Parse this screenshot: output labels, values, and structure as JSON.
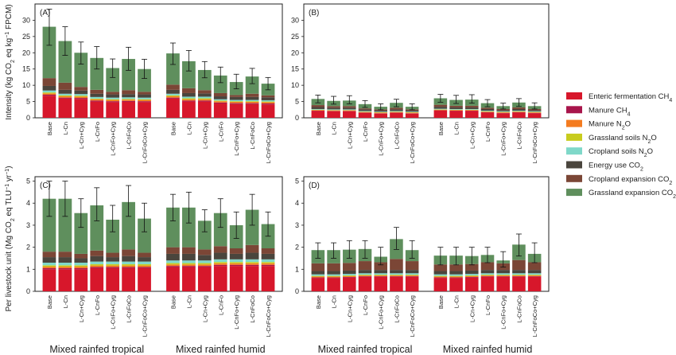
{
  "legend": [
    {
      "key": "enteric",
      "label": "Enteric fermentation CH",
      "sub": "4",
      "color": "#d7172b"
    },
    {
      "key": "manure_ch4",
      "label": "Manure CH",
      "sub": "4",
      "color": "#a8154b"
    },
    {
      "key": "manure_n2o",
      "label": "Manure N",
      "sub": "2",
      "tail": "O",
      "color": "#f47c20"
    },
    {
      "key": "grass_soil",
      "label": "Grassland soils N",
      "sub": "2",
      "tail": "O",
      "color": "#c8cc1e"
    },
    {
      "key": "crop_soil",
      "label": "Cropland soils N",
      "sub": "2",
      "tail": "O",
      "color": "#7fd8c9"
    },
    {
      "key": "energy",
      "label": "Energy use CO",
      "sub": "2",
      "color": "#4a453d"
    },
    {
      "key": "crop_exp",
      "label": "Cropland expansion CO",
      "sub": "2",
      "color": "#7b4636"
    },
    {
      "key": "grass_exp",
      "label": "Grassland expansion CO",
      "sub": "2",
      "color": "#5f8f5d"
    }
  ],
  "y_labels": {
    "top": "Intensity (kg CO2 eq kg⁻¹ FPCM)",
    "bottom": "Per livestock unit (Mg CO2 eq TLU⁻¹ yr⁻¹)"
  },
  "chart_data": [
    {
      "panel": "(A)",
      "type": "bar",
      "stacked": true,
      "ylim": [
        0,
        35
      ],
      "yticks": [
        0,
        5,
        10,
        15,
        20,
        25,
        30
      ],
      "groups": [
        "Mixed rainfed tropical",
        "Mixed rainfed humid"
      ],
      "categories": [
        "Base",
        "L-Cn",
        "L-Cn+Cyg",
        "L-CnFo",
        "L-CnFo+Cyg",
        "L-CnFoCo",
        "L-CnFoCo+Cyg"
      ],
      "bars": [
        {
          "group": 0,
          "cat": 0,
          "stack": [
            6.8,
            0.3,
            0.4,
            0.3,
            0.6,
            1.4,
            2.4,
            15.8
          ],
          "err": [
            22.3,
            33.4
          ]
        },
        {
          "group": 0,
          "cat": 1,
          "stack": [
            5.9,
            0.3,
            0.4,
            0.3,
            0.5,
            1.2,
            2.2,
            12.8
          ],
          "err": [
            19.2,
            28.0
          ]
        },
        {
          "group": 0,
          "cat": 2,
          "stack": [
            5.8,
            0.3,
            0.4,
            0.3,
            0.5,
            1.1,
            1.1,
            10.5
          ],
          "err": [
            16.5,
            23.3
          ]
        },
        {
          "group": 0,
          "cat": 3,
          "stack": [
            5.0,
            0.3,
            0.4,
            0.2,
            0.5,
            1.0,
            1.2,
            9.8
          ],
          "err": [
            15.0,
            21.9
          ]
        },
        {
          "group": 0,
          "cat": 4,
          "stack": [
            4.8,
            0.3,
            0.4,
            0.2,
            0.5,
            1.0,
            0.8,
            7.3
          ],
          "err": [
            12.4,
            18.1
          ]
        },
        {
          "group": 0,
          "cat": 5,
          "stack": [
            4.9,
            0.3,
            0.4,
            0.2,
            0.5,
            1.0,
            1.2,
            9.6
          ],
          "err": [
            14.6,
            21.7
          ]
        },
        {
          "group": 0,
          "cat": 6,
          "stack": [
            4.8,
            0.3,
            0.4,
            0.2,
            0.5,
            1.0,
            0.8,
            7.0
          ],
          "err": [
            12.1,
            18.0
          ]
        },
        {
          "group": 1,
          "cat": 0,
          "stack": [
            5.9,
            0.3,
            0.4,
            0.3,
            0.5,
            1.2,
            1.6,
            9.6
          ],
          "err": [
            16.4,
            23.0
          ]
        },
        {
          "group": 1,
          "cat": 1,
          "stack": [
            5.0,
            0.3,
            0.4,
            0.3,
            0.5,
            1.1,
            1.5,
            8.3
          ],
          "err": [
            14.4,
            20.7
          ]
        },
        {
          "group": 1,
          "cat": 2,
          "stack": [
            5.0,
            0.3,
            0.4,
            0.3,
            0.5,
            1.0,
            1.0,
            6.2
          ],
          "err": [
            12.3,
            17.3
          ]
        },
        {
          "group": 1,
          "cat": 3,
          "stack": [
            4.4,
            0.3,
            0.4,
            0.2,
            0.4,
            0.9,
            1.0,
            5.4
          ],
          "err": [
            10.8,
            15.6
          ]
        },
        {
          "group": 1,
          "cat": 4,
          "stack": [
            4.2,
            0.3,
            0.4,
            0.2,
            0.4,
            0.9,
            0.6,
            4.0
          ],
          "err": [
            8.9,
            13.4
          ]
        },
        {
          "group": 1,
          "cat": 5,
          "stack": [
            4.2,
            0.3,
            0.4,
            0.2,
            0.4,
            0.9,
            1.0,
            5.3
          ],
          "err": [
            10.5,
            15.2
          ]
        },
        {
          "group": 1,
          "cat": 6,
          "stack": [
            4.1,
            0.3,
            0.4,
            0.2,
            0.4,
            0.9,
            0.6,
            3.6
          ],
          "err": [
            8.6,
            12.4
          ]
        }
      ]
    },
    {
      "panel": "(B)",
      "type": "bar",
      "stacked": true,
      "ylim": [
        0,
        35
      ],
      "yticks": [
        0,
        5,
        10,
        15,
        20,
        25,
        30
      ],
      "groups": [
        "Mixed rainfed tropical",
        "Mixed rainfed humid"
      ],
      "categories": [
        "Base",
        "L-Cn",
        "L-Cn+Cyg",
        "L-CnFo",
        "L-CnFo+Cyg",
        "L-CnFoCo",
        "L-CnFoCo+Cyg"
      ],
      "bars": [
        {
          "group": 0,
          "cat": 0,
          "stack": [
            2.1,
            0.1,
            0.2,
            0.1,
            0.2,
            0.6,
            0.6,
            1.9
          ],
          "err": [
            4.6,
            7.0
          ]
        },
        {
          "group": 0,
          "cat": 1,
          "stack": [
            2.0,
            0.1,
            0.2,
            0.1,
            0.2,
            0.5,
            0.5,
            1.6
          ],
          "err": [
            4.2,
            6.6
          ]
        },
        {
          "group": 0,
          "cat": 2,
          "stack": [
            2.0,
            0.1,
            0.2,
            0.1,
            0.2,
            0.5,
            0.5,
            1.7
          ],
          "err": [
            4.3,
            6.8
          ]
        },
        {
          "group": 0,
          "cat": 3,
          "stack": [
            1.5,
            0.1,
            0.2,
            0.1,
            0.2,
            0.5,
            0.3,
            1.3
          ],
          "err": [
            3.2,
            5.3
          ]
        },
        {
          "group": 0,
          "cat": 4,
          "stack": [
            1.3,
            0.1,
            0.2,
            0.1,
            0.2,
            0.4,
            0.3,
            0.8
          ],
          "err": [
            2.5,
            4.3
          ]
        },
        {
          "group": 0,
          "cat": 5,
          "stack": [
            1.5,
            0.1,
            0.2,
            0.1,
            0.2,
            0.5,
            0.5,
            1.5
          ],
          "err": [
            3.4,
            5.7
          ]
        },
        {
          "group": 0,
          "cat": 6,
          "stack": [
            1.3,
            0.1,
            0.2,
            0.1,
            0.2,
            0.4,
            0.3,
            0.8
          ],
          "err": [
            2.5,
            4.3
          ]
        },
        {
          "group": 1,
          "cat": 0,
          "stack": [
            2.2,
            0.1,
            0.2,
            0.1,
            0.2,
            0.6,
            0.6,
            2.0
          ],
          "err": [
            4.8,
            7.2
          ]
        },
        {
          "group": 1,
          "cat": 1,
          "stack": [
            2.1,
            0.1,
            0.2,
            0.1,
            0.2,
            0.5,
            0.5,
            1.8
          ],
          "err": [
            4.4,
            6.9
          ]
        },
        {
          "group": 1,
          "cat": 2,
          "stack": [
            2.1,
            0.1,
            0.2,
            0.1,
            0.2,
            0.5,
            0.5,
            1.9
          ],
          "err": [
            4.5,
            7.1
          ]
        },
        {
          "group": 1,
          "cat": 3,
          "stack": [
            1.6,
            0.1,
            0.2,
            0.1,
            0.2,
            0.5,
            0.4,
            1.4
          ],
          "err": [
            3.4,
            5.6
          ]
        },
        {
          "group": 1,
          "cat": 4,
          "stack": [
            1.4,
            0.1,
            0.2,
            0.1,
            0.2,
            0.4,
            0.3,
            0.9
          ],
          "err": [
            2.7,
            4.5
          ]
        },
        {
          "group": 1,
          "cat": 5,
          "stack": [
            1.6,
            0.1,
            0.2,
            0.1,
            0.2,
            0.5,
            0.5,
            1.5
          ],
          "err": [
            3.5,
            5.9
          ]
        },
        {
          "group": 1,
          "cat": 6,
          "stack": [
            1.4,
            0.1,
            0.2,
            0.1,
            0.2,
            0.4,
            0.3,
            0.9
          ],
          "err": [
            2.7,
            4.6
          ]
        }
      ]
    },
    {
      "panel": "(C)",
      "type": "bar",
      "stacked": true,
      "ylim": [
        0,
        5.2
      ],
      "yticks": [
        0,
        1,
        2,
        3,
        4,
        5
      ],
      "groups": [
        "Mixed rainfed tropical",
        "Mixed rainfed humid"
      ],
      "categories": [
        "Base",
        "L-Cn",
        "L-Cn+Cyg",
        "L-CnFo",
        "L-CnFo+Cyg",
        "L-CnFoCo",
        "L-CnFoCo+Cyg"
      ],
      "bars": [
        {
          "group": 0,
          "cat": 0,
          "stack": [
            1.0,
            0.05,
            0.07,
            0.06,
            0.12,
            0.25,
            0.25,
            2.4
          ],
          "err": [
            3.4,
            5.0
          ]
        },
        {
          "group": 0,
          "cat": 1,
          "stack": [
            1.0,
            0.05,
            0.07,
            0.06,
            0.12,
            0.25,
            0.25,
            2.4
          ],
          "err": [
            3.4,
            5.0
          ]
        },
        {
          "group": 0,
          "cat": 2,
          "stack": [
            1.0,
            0.05,
            0.07,
            0.06,
            0.12,
            0.2,
            0.2,
            1.85
          ],
          "err": [
            2.9,
            4.2
          ]
        },
        {
          "group": 0,
          "cat": 3,
          "stack": [
            1.05,
            0.05,
            0.07,
            0.06,
            0.12,
            0.25,
            0.25,
            2.05
          ],
          "err": [
            3.2,
            4.7
          ]
        },
        {
          "group": 0,
          "cat": 4,
          "stack": [
            1.05,
            0.05,
            0.07,
            0.06,
            0.12,
            0.2,
            0.2,
            1.5
          ],
          "err": [
            2.7,
            3.9
          ]
        },
        {
          "group": 0,
          "cat": 5,
          "stack": [
            1.05,
            0.05,
            0.07,
            0.06,
            0.12,
            0.25,
            0.3,
            2.15
          ],
          "err": [
            3.4,
            4.8
          ]
        },
        {
          "group": 0,
          "cat": 6,
          "stack": [
            1.05,
            0.05,
            0.07,
            0.06,
            0.12,
            0.2,
            0.2,
            1.55
          ],
          "err": [
            2.7,
            4.0
          ]
        },
        {
          "group": 1,
          "cat": 0,
          "stack": [
            1.1,
            0.05,
            0.07,
            0.06,
            0.12,
            0.3,
            0.3,
            1.8
          ],
          "err": [
            3.2,
            4.4
          ]
        },
        {
          "group": 1,
          "cat": 1,
          "stack": [
            1.1,
            0.05,
            0.07,
            0.06,
            0.12,
            0.3,
            0.3,
            1.8
          ],
          "err": [
            3.1,
            4.5
          ]
        },
        {
          "group": 1,
          "cat": 2,
          "stack": [
            1.1,
            0.05,
            0.07,
            0.06,
            0.12,
            0.25,
            0.25,
            1.3
          ],
          "err": [
            2.7,
            3.7
          ]
        },
        {
          "group": 1,
          "cat": 3,
          "stack": [
            1.15,
            0.05,
            0.07,
            0.06,
            0.12,
            0.3,
            0.3,
            1.5
          ],
          "err": [
            2.9,
            4.2
          ]
        },
        {
          "group": 1,
          "cat": 4,
          "stack": [
            1.15,
            0.05,
            0.07,
            0.06,
            0.12,
            0.25,
            0.25,
            1.05
          ],
          "err": [
            2.4,
            3.6
          ]
        },
        {
          "group": 1,
          "cat": 5,
          "stack": [
            1.15,
            0.05,
            0.07,
            0.06,
            0.12,
            0.3,
            0.35,
            1.6
          ],
          "err": [
            3.0,
            4.4
          ]
        },
        {
          "group": 1,
          "cat": 6,
          "stack": [
            1.15,
            0.05,
            0.07,
            0.06,
            0.12,
            0.25,
            0.25,
            1.1
          ],
          "err": [
            2.5,
            3.6
          ]
        }
      ]
    },
    {
      "panel": "(D)",
      "type": "bar",
      "stacked": true,
      "ylim": [
        0,
        5.2
      ],
      "yticks": [
        0,
        1,
        2,
        3,
        4,
        5
      ],
      "groups": [
        "Mixed rainfed tropical",
        "Mixed rainfed humid"
      ],
      "categories": [
        "Base",
        "L-Cn",
        "L-Cn+Cyg",
        "L-CnFo",
        "L-CnFo+Cyg",
        "L-CnFoCo",
        "L-CnFoCo+Cyg"
      ],
      "bars": [
        {
          "group": 0,
          "cat": 0,
          "stack": [
            0.6,
            0.03,
            0.04,
            0.03,
            0.07,
            0.15,
            0.35,
            0.6
          ],
          "err": [
            1.5,
            2.2
          ]
        },
        {
          "group": 0,
          "cat": 1,
          "stack": [
            0.6,
            0.03,
            0.04,
            0.03,
            0.07,
            0.15,
            0.35,
            0.6
          ],
          "err": [
            1.5,
            2.2
          ]
        },
        {
          "group": 0,
          "cat": 2,
          "stack": [
            0.62,
            0.03,
            0.04,
            0.03,
            0.07,
            0.15,
            0.35,
            0.6
          ],
          "err": [
            1.5,
            2.3
          ]
        },
        {
          "group": 0,
          "cat": 3,
          "stack": [
            0.65,
            0.03,
            0.04,
            0.03,
            0.07,
            0.15,
            0.4,
            0.55
          ],
          "err": [
            1.5,
            2.3
          ]
        },
        {
          "group": 0,
          "cat": 4,
          "stack": [
            0.65,
            0.03,
            0.04,
            0.03,
            0.07,
            0.15,
            0.35,
            0.25
          ],
          "err": [
            1.2,
            2.0
          ]
        },
        {
          "group": 0,
          "cat": 5,
          "stack": [
            0.65,
            0.03,
            0.04,
            0.03,
            0.07,
            0.15,
            0.5,
            0.9
          ],
          "err": [
            1.9,
            2.9
          ]
        },
        {
          "group": 0,
          "cat": 6,
          "stack": [
            0.65,
            0.03,
            0.04,
            0.03,
            0.07,
            0.15,
            0.4,
            0.5
          ],
          "err": [
            1.5,
            2.3
          ]
        },
        {
          "group": 1,
          "cat": 0,
          "stack": [
            0.6,
            0.03,
            0.04,
            0.03,
            0.07,
            0.15,
            0.3,
            0.4
          ],
          "err": [
            1.2,
            2.0
          ]
        },
        {
          "group": 1,
          "cat": 1,
          "stack": [
            0.6,
            0.03,
            0.04,
            0.03,
            0.07,
            0.15,
            0.3,
            0.4
          ],
          "err": [
            1.2,
            2.0
          ]
        },
        {
          "group": 1,
          "cat": 2,
          "stack": [
            0.62,
            0.03,
            0.04,
            0.03,
            0.07,
            0.15,
            0.3,
            0.36
          ],
          "err": [
            1.2,
            2.0
          ]
        },
        {
          "group": 1,
          "cat": 3,
          "stack": [
            0.65,
            0.03,
            0.04,
            0.03,
            0.07,
            0.15,
            0.35,
            0.33
          ],
          "err": [
            1.3,
            2.0
          ]
        },
        {
          "group": 1,
          "cat": 4,
          "stack": [
            0.65,
            0.03,
            0.04,
            0.03,
            0.07,
            0.15,
            0.3,
            0.13
          ],
          "err": [
            1.1,
            1.8
          ]
        },
        {
          "group": 1,
          "cat": 5,
          "stack": [
            0.65,
            0.03,
            0.04,
            0.03,
            0.07,
            0.15,
            0.45,
            0.7
          ],
          "err": [
            1.6,
            2.6
          ]
        },
        {
          "group": 1,
          "cat": 6,
          "stack": [
            0.65,
            0.03,
            0.04,
            0.03,
            0.07,
            0.15,
            0.35,
            0.38
          ],
          "err": [
            1.3,
            2.2
          ]
        }
      ]
    }
  ]
}
